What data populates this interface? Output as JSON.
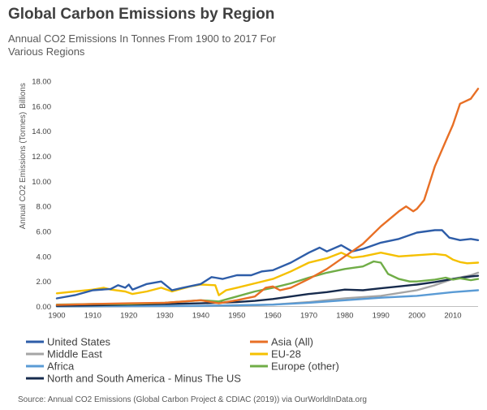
{
  "chart_data": {
    "type": "line",
    "title": "Global Carbon Emissions by Region",
    "subtitle": "Annual CO2 Emissions In Tonnes From 1900 to 2017 For Various Regions",
    "ylabel": "Annual CO2 Emissions (Tonnes)",
    "yunit": "Billions",
    "xlim": [
      1900,
      2017
    ],
    "ylim": [
      0,
      18
    ],
    "xticks": [
      1900,
      1910,
      1920,
      1930,
      1940,
      1950,
      1960,
      1970,
      1980,
      1990,
      2000,
      2010
    ],
    "yticks": [
      "0.00",
      "2.00",
      "4.00",
      "6.00",
      "8.00",
      "10.00",
      "12.00",
      "14.00",
      "16.00",
      "18.00"
    ],
    "grid": false,
    "legend_position": "bottom",
    "series": [
      {
        "name": "United States",
        "color": "#2e5da8",
        "points": [
          [
            1900,
            0.65
          ],
          [
            1905,
            0.9
          ],
          [
            1910,
            1.3
          ],
          [
            1915,
            1.4
          ],
          [
            1917,
            1.7
          ],
          [
            1919,
            1.5
          ],
          [
            1920,
            1.75
          ],
          [
            1921,
            1.35
          ],
          [
            1925,
            1.8
          ],
          [
            1929,
            2.0
          ],
          [
            1932,
            1.3
          ],
          [
            1935,
            1.5
          ],
          [
            1940,
            1.8
          ],
          [
            1943,
            2.35
          ],
          [
            1944,
            2.3
          ],
          [
            1946,
            2.2
          ],
          [
            1950,
            2.5
          ],
          [
            1954,
            2.5
          ],
          [
            1957,
            2.8
          ],
          [
            1960,
            2.9
          ],
          [
            1965,
            3.5
          ],
          [
            1970,
            4.3
          ],
          [
            1973,
            4.7
          ],
          [
            1975,
            4.4
          ],
          [
            1979,
            4.9
          ],
          [
            1982,
            4.4
          ],
          [
            1985,
            4.6
          ],
          [
            1990,
            5.1
          ],
          [
            1995,
            5.4
          ],
          [
            2000,
            5.9
          ],
          [
            2005,
            6.1
          ],
          [
            2007,
            6.1
          ],
          [
            2009,
            5.5
          ],
          [
            2012,
            5.3
          ],
          [
            2015,
            5.4
          ],
          [
            2017,
            5.3
          ]
        ]
      },
      {
        "name": "Asia (All)",
        "color": "#e86f25",
        "points": [
          [
            1900,
            0.12
          ],
          [
            1910,
            0.2
          ],
          [
            1920,
            0.25
          ],
          [
            1930,
            0.3
          ],
          [
            1940,
            0.5
          ],
          [
            1945,
            0.25
          ],
          [
            1950,
            0.5
          ],
          [
            1955,
            0.8
          ],
          [
            1958,
            1.5
          ],
          [
            1960,
            1.6
          ],
          [
            1962,
            1.3
          ],
          [
            1965,
            1.5
          ],
          [
            1970,
            2.2
          ],
          [
            1975,
            3.0
          ],
          [
            1980,
            4.0
          ],
          [
            1985,
            5.0
          ],
          [
            1990,
            6.4
          ],
          [
            1995,
            7.6
          ],
          [
            1997,
            8.0
          ],
          [
            1999,
            7.6
          ],
          [
            2000,
            7.8
          ],
          [
            2002,
            8.5
          ],
          [
            2005,
            11.2
          ],
          [
            2008,
            13.2
          ],
          [
            2010,
            14.5
          ],
          [
            2012,
            16.2
          ],
          [
            2015,
            16.6
          ],
          [
            2017,
            17.4
          ]
        ]
      },
      {
        "name": "Middle East",
        "color": "#a5a5a5",
        "points": [
          [
            1900,
            0.0
          ],
          [
            1930,
            0.02
          ],
          [
            1950,
            0.05
          ],
          [
            1960,
            0.15
          ],
          [
            1970,
            0.35
          ],
          [
            1980,
            0.65
          ],
          [
            1990,
            0.85
          ],
          [
            2000,
            1.3
          ],
          [
            2005,
            1.7
          ],
          [
            2010,
            2.2
          ],
          [
            2015,
            2.5
          ],
          [
            2017,
            2.7
          ]
        ]
      },
      {
        "name": "EU-28",
        "color": "#f5c000",
        "points": [
          [
            1900,
            1.05
          ],
          [
            1905,
            1.2
          ],
          [
            1910,
            1.35
          ],
          [
            1913,
            1.5
          ],
          [
            1915,
            1.35
          ],
          [
            1919,
            1.2
          ],
          [
            1921,
            1.0
          ],
          [
            1925,
            1.2
          ],
          [
            1929,
            1.5
          ],
          [
            1932,
            1.2
          ],
          [
            1937,
            1.6
          ],
          [
            1940,
            1.75
          ],
          [
            1944,
            1.7
          ],
          [
            1945,
            0.9
          ],
          [
            1947,
            1.3
          ],
          [
            1950,
            1.5
          ],
          [
            1955,
            1.85
          ],
          [
            1960,
            2.2
          ],
          [
            1965,
            2.8
          ],
          [
            1970,
            3.5
          ],
          [
            1975,
            3.85
          ],
          [
            1979,
            4.3
          ],
          [
            1982,
            3.9
          ],
          [
            1985,
            4.0
          ],
          [
            1990,
            4.3
          ],
          [
            1995,
            4.0
          ],
          [
            2000,
            4.1
          ],
          [
            2005,
            4.2
          ],
          [
            2008,
            4.1
          ],
          [
            2010,
            3.75
          ],
          [
            2012,
            3.55
          ],
          [
            2014,
            3.45
          ],
          [
            2017,
            3.5
          ]
        ]
      },
      {
        "name": "Africa",
        "color": "#5a9bd5",
        "points": [
          [
            1900,
            0.01
          ],
          [
            1920,
            0.03
          ],
          [
            1940,
            0.05
          ],
          [
            1950,
            0.1
          ],
          [
            1960,
            0.15
          ],
          [
            1970,
            0.3
          ],
          [
            1980,
            0.5
          ],
          [
            1990,
            0.7
          ],
          [
            2000,
            0.85
          ],
          [
            2010,
            1.15
          ],
          [
            2017,
            1.3
          ]
        ]
      },
      {
        "name": "Europe (other)",
        "color": "#70ad47",
        "points": [
          [
            1900,
            0.15
          ],
          [
            1910,
            0.2
          ],
          [
            1920,
            0.2
          ],
          [
            1930,
            0.3
          ],
          [
            1940,
            0.5
          ],
          [
            1945,
            0.4
          ],
          [
            1950,
            0.8
          ],
          [
            1955,
            1.2
          ],
          [
            1960,
            1.5
          ],
          [
            1965,
            1.85
          ],
          [
            1970,
            2.3
          ],
          [
            1975,
            2.7
          ],
          [
            1980,
            3.0
          ],
          [
            1985,
            3.2
          ],
          [
            1988,
            3.6
          ],
          [
            1990,
            3.5
          ],
          [
            1992,
            2.6
          ],
          [
            1995,
            2.2
          ],
          [
            1998,
            2.0
          ],
          [
            2000,
            2.0
          ],
          [
            2005,
            2.15
          ],
          [
            2008,
            2.3
          ],
          [
            2010,
            2.15
          ],
          [
            2012,
            2.25
          ],
          [
            2015,
            2.1
          ],
          [
            2017,
            2.2
          ]
        ]
      },
      {
        "name": "North and South America - Minus The US",
        "color": "#172b4d",
        "points": [
          [
            1900,
            0.05
          ],
          [
            1910,
            0.1
          ],
          [
            1920,
            0.15
          ],
          [
            1930,
            0.2
          ],
          [
            1940,
            0.25
          ],
          [
            1950,
            0.35
          ],
          [
            1955,
            0.45
          ],
          [
            1960,
            0.6
          ],
          [
            1965,
            0.8
          ],
          [
            1970,
            1.0
          ],
          [
            1975,
            1.15
          ],
          [
            1980,
            1.35
          ],
          [
            1985,
            1.3
          ],
          [
            1990,
            1.45
          ],
          [
            1995,
            1.6
          ],
          [
            2000,
            1.75
          ],
          [
            2005,
            1.95
          ],
          [
            2010,
            2.2
          ],
          [
            2015,
            2.4
          ],
          [
            2017,
            2.45
          ]
        ]
      }
    ],
    "source": "Source: Annual CO2 Emissions (Global Carbon Project & CDIAC (2019)) via OurWorldInData.org"
  }
}
